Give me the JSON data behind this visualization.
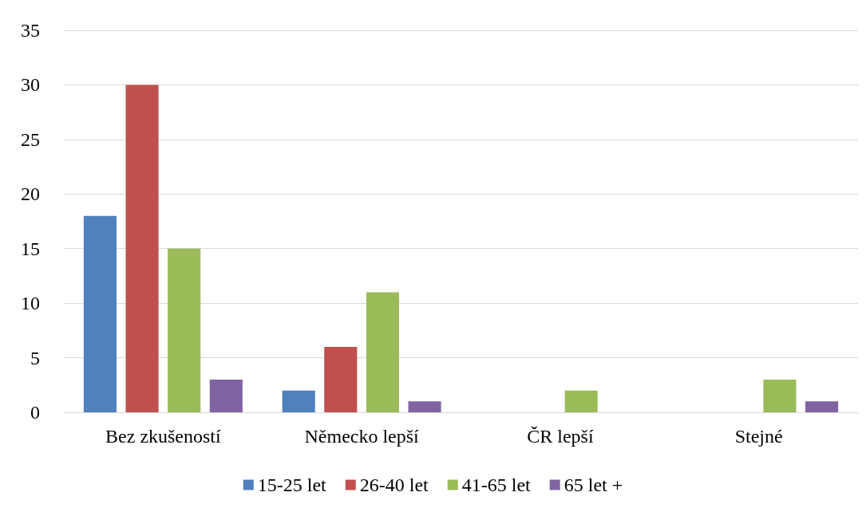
{
  "chart_data": {
    "type": "bar",
    "categories": [
      "Bez zkušeností",
      "Německo lepší",
      "ČR lepší",
      "Stejné"
    ],
    "series": [
      {
        "name": "15-25 let",
        "color": "#4f81bd",
        "values": [
          18,
          2,
          0,
          0
        ]
      },
      {
        "name": "26-40 let",
        "color": "#c0504d",
        "values": [
          30,
          6,
          0,
          0
        ]
      },
      {
        "name": "41-65 let",
        "color": "#9bbb59",
        "values": [
          15,
          11,
          2,
          3
        ]
      },
      {
        "name": "65 let +",
        "color": "#8064a2",
        "values": [
          3,
          1,
          0,
          1
        ]
      }
    ],
    "ylim": [
      0,
      35
    ],
    "yticks": [
      0,
      5,
      10,
      15,
      20,
      25,
      30,
      35
    ],
    "grid": "y",
    "legend": "bottom"
  }
}
